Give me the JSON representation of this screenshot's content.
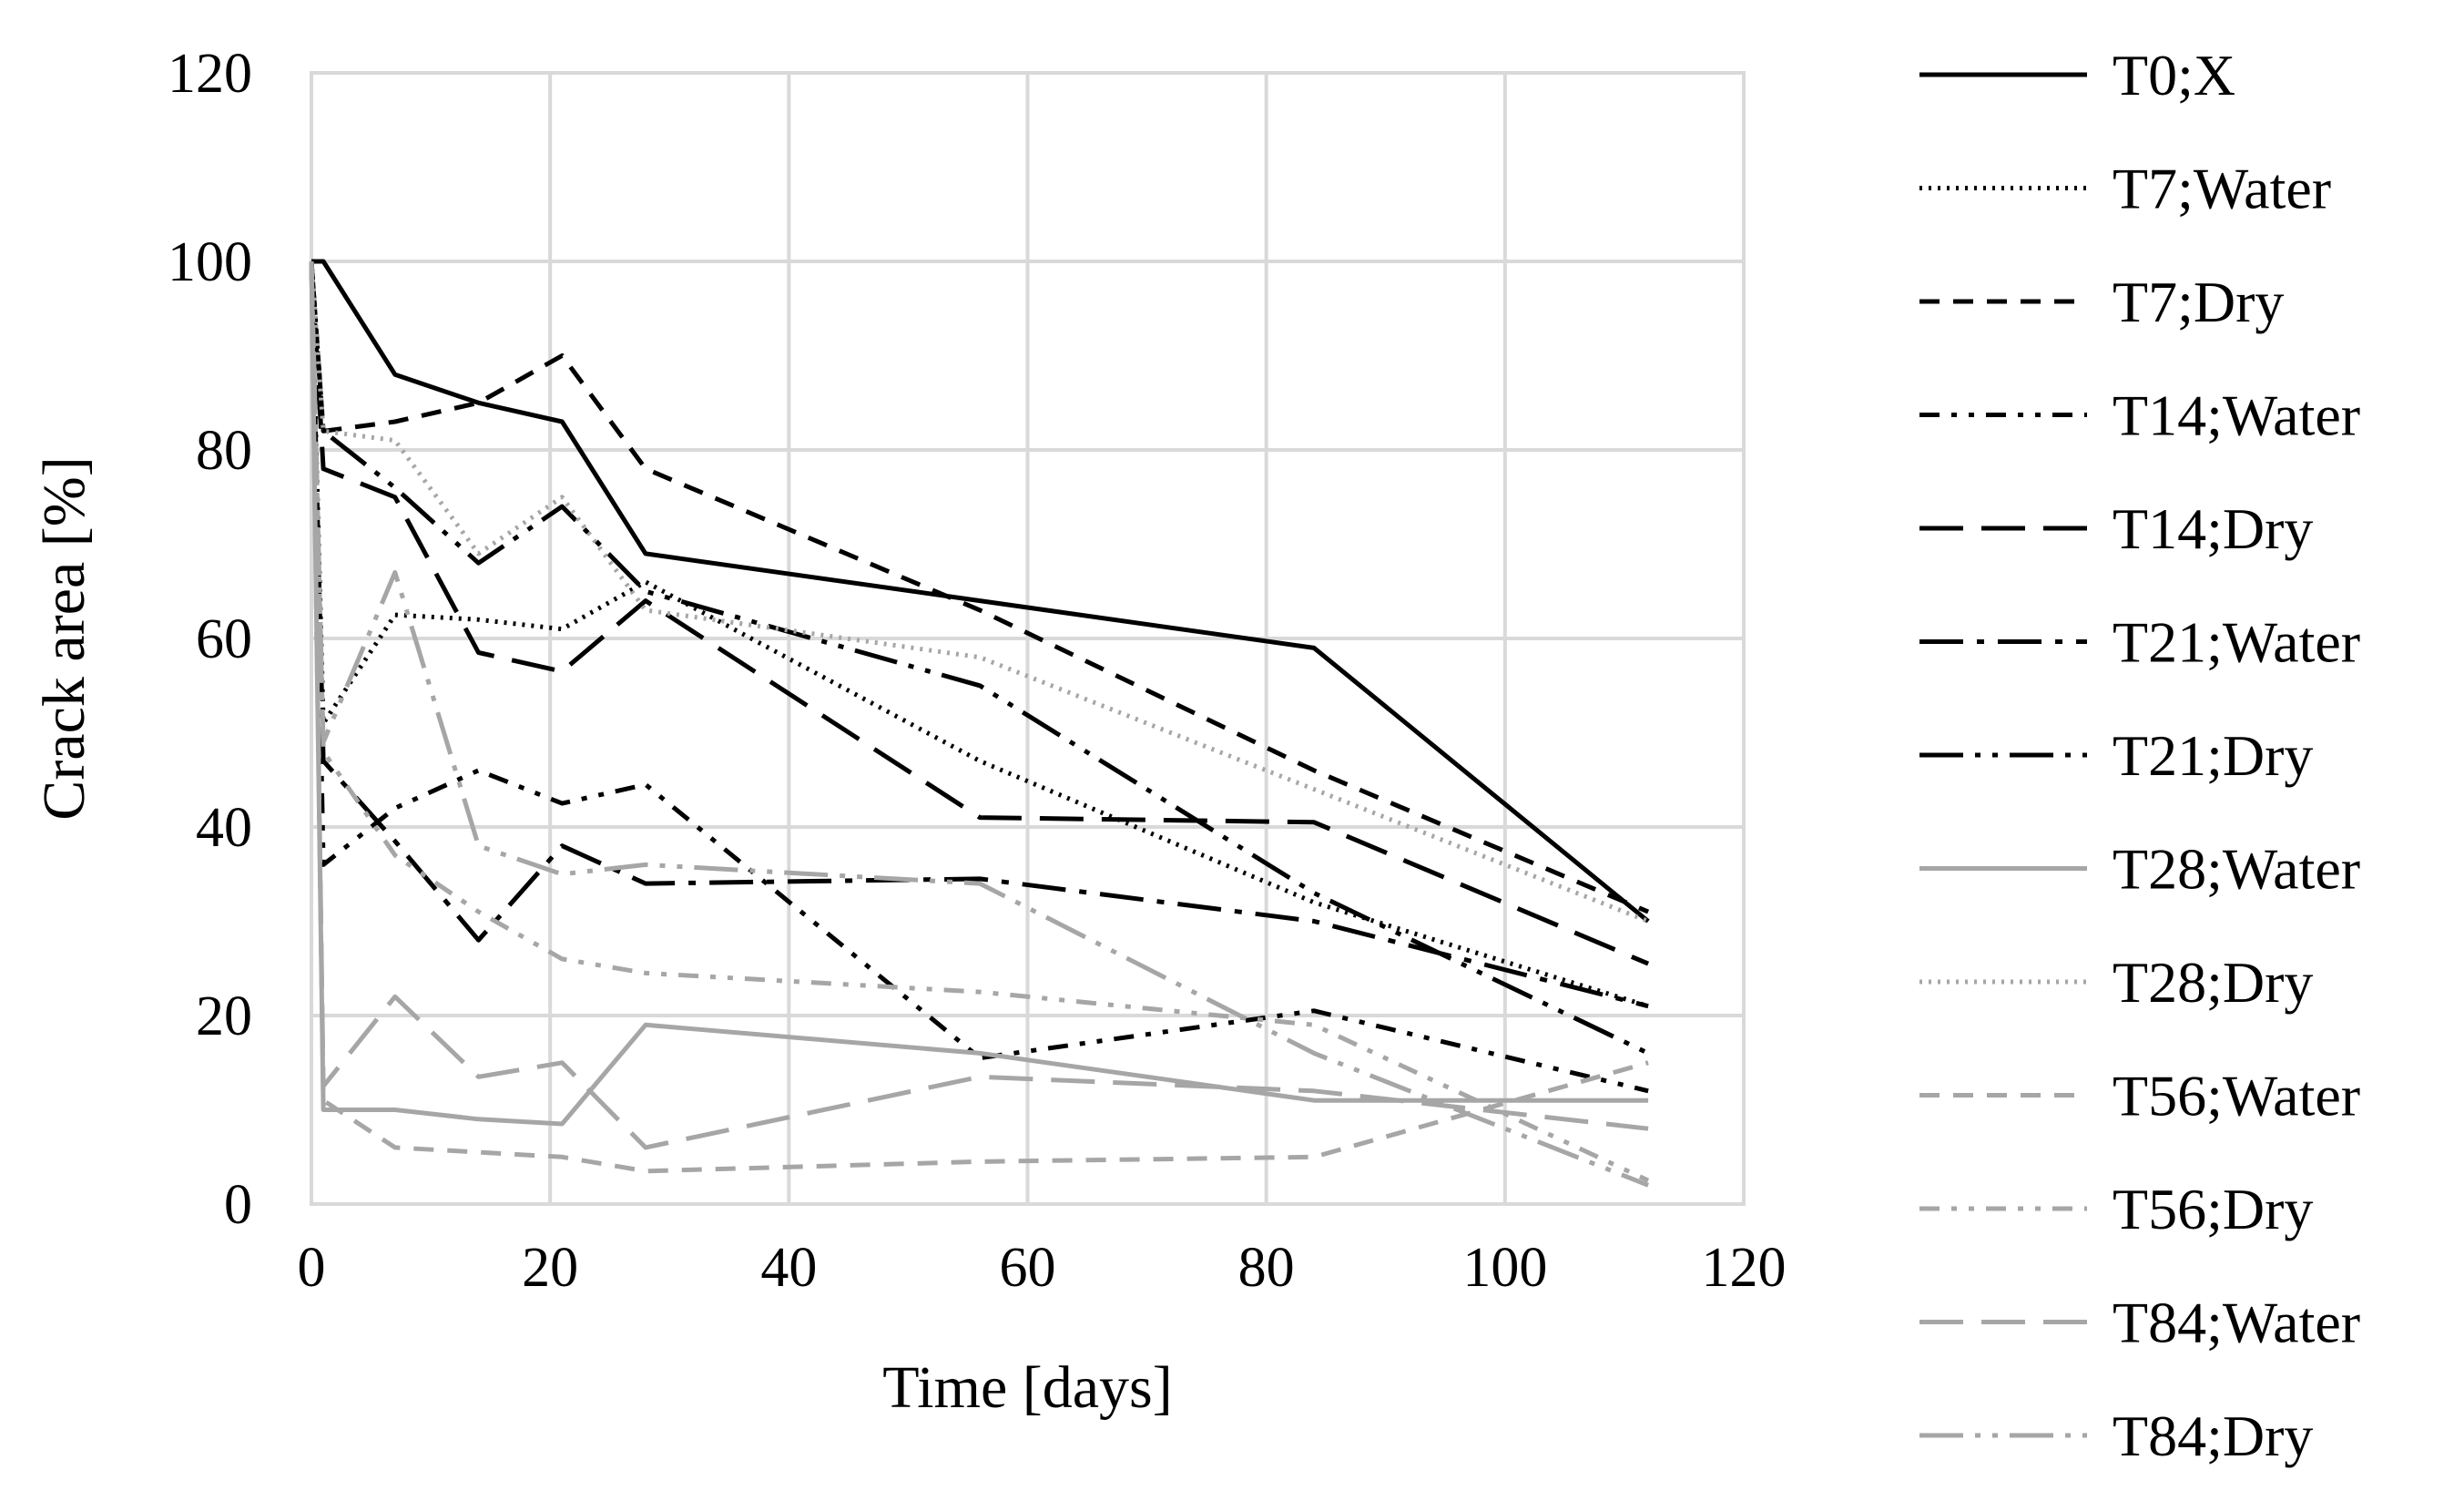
{
  "chart_data": {
    "type": "line",
    "title": "",
    "xlabel": "Time [days]",
    "ylabel": "Crack area [%]",
    "xlim": [
      0,
      120
    ],
    "ylim": [
      0,
      120
    ],
    "xticks": [
      0,
      20,
      40,
      60,
      80,
      100,
      120
    ],
    "yticks": [
      0,
      20,
      40,
      60,
      80,
      100,
      120
    ],
    "x_tick_labels": [
      "0",
      "20",
      "40",
      "60",
      "80",
      "100",
      "120"
    ],
    "y_tick_labels": [
      "0",
      "20",
      "40",
      "60",
      "80",
      "100",
      "120"
    ],
    "grid": true,
    "legend_position": "right",
    "series": [
      {
        "name": "T0;X",
        "color": "#000000",
        "dash": "solid",
        "points": [
          [
            0,
            100
          ],
          [
            1,
            100
          ],
          [
            7,
            88
          ],
          [
            14,
            85
          ],
          [
            21,
            83
          ],
          [
            28,
            69
          ],
          [
            56,
            64
          ],
          [
            84,
            59
          ],
          [
            112,
            30
          ]
        ]
      },
      {
        "name": "T7;Water",
        "color": "#000000",
        "dash": "dot",
        "points": [
          [
            0,
            100
          ],
          [
            1,
            51
          ],
          [
            7,
            62.5
          ],
          [
            14,
            62
          ],
          [
            21,
            61
          ],
          [
            28,
            66
          ],
          [
            56,
            47
          ],
          [
            84,
            32
          ],
          [
            112,
            21
          ]
        ]
      },
      {
        "name": "T7;Dry",
        "color": "#000000",
        "dash": "dash",
        "points": [
          [
            0,
            100
          ],
          [
            1,
            82
          ],
          [
            7,
            83
          ],
          [
            14,
            85
          ],
          [
            21,
            90
          ],
          [
            28,
            78
          ],
          [
            56,
            63
          ],
          [
            84,
            46
          ],
          [
            112,
            31
          ]
        ]
      },
      {
        "name": "T14;Water",
        "color": "#000000",
        "dash": "dashdotdot",
        "points": [
          [
            0,
            100
          ],
          [
            1,
            36
          ],
          [
            7,
            42
          ],
          [
            14,
            46
          ],
          [
            21,
            42.5
          ],
          [
            28,
            44.5
          ],
          [
            56,
            15.5
          ],
          [
            84,
            20.5
          ],
          [
            112,
            12
          ]
        ]
      },
      {
        "name": "T14;Dry",
        "color": "#000000",
        "dash": "longdash",
        "points": [
          [
            0,
            100
          ],
          [
            1,
            78
          ],
          [
            7,
            75
          ],
          [
            14,
            58.5
          ],
          [
            21,
            56.5
          ],
          [
            28,
            64
          ],
          [
            56,
            41
          ],
          [
            84,
            40.5
          ],
          [
            112,
            25.5
          ]
        ]
      },
      {
        "name": "T21;Water",
        "color": "#000000",
        "dash": "longdashdot",
        "points": [
          [
            0,
            100
          ],
          [
            1,
            47
          ],
          [
            7,
            38.5
          ],
          [
            14,
            28
          ],
          [
            21,
            38
          ],
          [
            28,
            34
          ],
          [
            56,
            34.5
          ],
          [
            84,
            30
          ],
          [
            112,
            21
          ]
        ]
      },
      {
        "name": "T21;Dry",
        "color": "#000000",
        "dash": "longdashdotdot",
        "points": [
          [
            0,
            100
          ],
          [
            1,
            82
          ],
          [
            7,
            76
          ],
          [
            14,
            68
          ],
          [
            21,
            74
          ],
          [
            28,
            65
          ],
          [
            56,
            55
          ],
          [
            84,
            33
          ],
          [
            112,
            16
          ]
        ]
      },
      {
        "name": "T28;Water",
        "color": "#a6a6a6",
        "dash": "solid",
        "points": [
          [
            0,
            100
          ],
          [
            1,
            10
          ],
          [
            7,
            10
          ],
          [
            14,
            9
          ],
          [
            21,
            8.5
          ],
          [
            28,
            19
          ],
          [
            56,
            16
          ],
          [
            84,
            11
          ],
          [
            112,
            11
          ]
        ]
      },
      {
        "name": "T28;Dry",
        "color": "#a6a6a6",
        "dash": "dot",
        "points": [
          [
            0,
            100
          ],
          [
            1,
            82
          ],
          [
            7,
            81
          ],
          [
            14,
            69
          ],
          [
            21,
            75
          ],
          [
            28,
            63
          ],
          [
            56,
            58
          ],
          [
            84,
            44
          ],
          [
            112,
            30
          ]
        ]
      },
      {
        "name": "T56;Water",
        "color": "#a6a6a6",
        "dash": "dash",
        "points": [
          [
            0,
            100
          ],
          [
            1,
            11
          ],
          [
            7,
            6
          ],
          [
            14,
            5.5
          ],
          [
            21,
            5
          ],
          [
            28,
            3.5
          ],
          [
            56,
            4.5
          ],
          [
            84,
            5
          ],
          [
            112,
            15
          ]
        ]
      },
      {
        "name": "T56;Dry",
        "color": "#a6a6a6",
        "dash": "dashdotdot",
        "points": [
          [
            0,
            100
          ],
          [
            1,
            48
          ],
          [
            7,
            37
          ],
          [
            14,
            31
          ],
          [
            21,
            26
          ],
          [
            28,
            24.5
          ],
          [
            56,
            22.5
          ],
          [
            84,
            19
          ],
          [
            112,
            2.5
          ]
        ]
      },
      {
        "name": "T84;Water",
        "color": "#a6a6a6",
        "dash": "longdash",
        "points": [
          [
            0,
            100
          ],
          [
            1,
            12.5
          ],
          [
            7,
            22
          ],
          [
            14,
            13.5
          ],
          [
            21,
            15
          ],
          [
            28,
            6
          ],
          [
            56,
            13.5
          ],
          [
            84,
            12
          ],
          [
            112,
            8
          ]
        ]
      },
      {
        "name": "T84;Dry",
        "color": "#a6a6a6",
        "dash": "longdashdotdot",
        "points": [
          [
            0,
            100
          ],
          [
            1,
            49
          ],
          [
            7,
            67
          ],
          [
            14,
            38
          ],
          [
            21,
            35
          ],
          [
            28,
            36
          ],
          [
            56,
            34
          ],
          [
            84,
            16
          ],
          [
            112,
            2
          ]
        ]
      }
    ]
  }
}
